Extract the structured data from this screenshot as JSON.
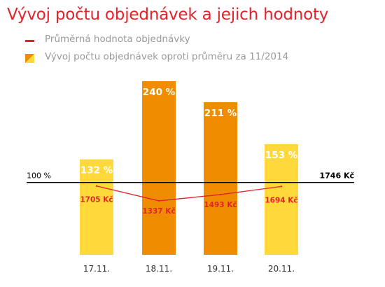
{
  "title": "Vývoj počtu objednávek a jejich hodnoty",
  "legend": [
    {
      "label": "Průměrná hodnota objednávky",
      "symbol": "line"
    },
    {
      "label": "Vývoj počtu objednávek oproti průměru za 11/2014",
      "symbol": "bar"
    }
  ],
  "colors": {
    "title": "#e2232a",
    "line": "#e2232a",
    "bar_light": "#ffd93a",
    "bar_dark": "#ef8c00",
    "baseline": "#000000",
    "legend_text": "#9a9a9a"
  },
  "chart_data": {
    "type": "bar",
    "categories": [
      "17.11.",
      "18.11.",
      "19.11.",
      "20.11."
    ],
    "series": [
      {
        "name": "Vývoj počtu objednávek oproti průměru za 11/2014",
        "values": [
          132,
          240,
          211,
          153
        ],
        "labels": [
          "132 %",
          "240 %",
          "211 %",
          "153 %"
        ],
        "colors": [
          "#ffd93a",
          "#ef8c00",
          "#ef8c00",
          "#ffd93a"
        ]
      },
      {
        "name": "Průměrná hodnota objednávky",
        "type": "line",
        "values": [
          1705,
          1337,
          1493,
          1694
        ],
        "labels": [
          "1705 Kč",
          "1337 Kč",
          "1493 Kč",
          "1694 Kč"
        ]
      }
    ],
    "reference_line": {
      "left_label": "100 %",
      "right_label": "1746 Kč",
      "bar_value": 100,
      "line_value": 1746
    },
    "bar_axis": {
      "ylim": [
        0,
        270
      ]
    },
    "line_axis": {
      "ylim": [
        0,
        4840
      ]
    },
    "grid": false,
    "legend_position": "top-left"
  }
}
